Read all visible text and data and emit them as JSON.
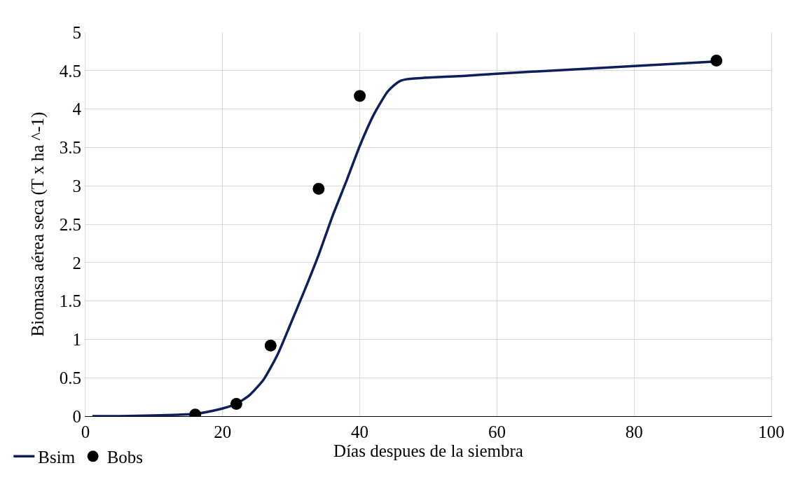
{
  "chart_data": {
    "type": "line",
    "xlabel": "Días despues de la siembra",
    "ylabel": "Biomasa aérea seca (T x ha ^-1)",
    "xlim": [
      0,
      100
    ],
    "xticks": [
      0,
      20,
      40,
      60,
      80,
      100
    ],
    "ylim": [
      0,
      5
    ],
    "yticks": [
      0,
      0.5,
      1,
      1.5,
      2,
      2.5,
      3,
      3.5,
      4,
      4.5,
      5
    ],
    "grid": true,
    "legend": "bottom left",
    "series": [
      {
        "name": "Bsim",
        "type": "line",
        "color": "#0d1f5c",
        "marker": "none",
        "line_style": "solid",
        "x": [
          1,
          5,
          10,
          14,
          16,
          18,
          20,
          22,
          24,
          26,
          28,
          30,
          32,
          34,
          36,
          38,
          40,
          42,
          44,
          45,
          46,
          47,
          50,
          55,
          60,
          70,
          80,
          92
        ],
        "values": [
          0,
          0,
          0.01,
          0.02,
          0.03,
          0.06,
          0.1,
          0.16,
          0.28,
          0.48,
          0.8,
          1.22,
          1.65,
          2.1,
          2.6,
          3.05,
          3.52,
          3.92,
          4.22,
          4.31,
          4.37,
          4.39,
          4.41,
          4.43,
          4.46,
          4.51,
          4.56,
          4.62
        ]
      },
      {
        "name": "Bobs",
        "type": "scatter",
        "color": "#000000",
        "marker": "circle",
        "x": [
          16,
          22,
          27,
          34,
          40,
          92
        ],
        "values": [
          0.02,
          0.16,
          0.92,
          2.96,
          4.17,
          4.63
        ]
      }
    ]
  }
}
